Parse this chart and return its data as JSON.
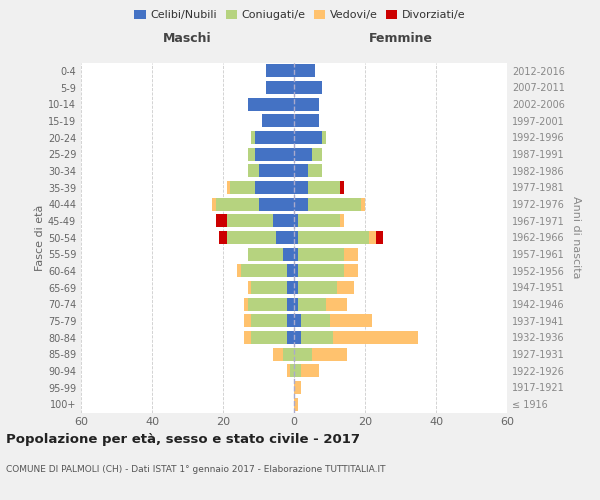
{
  "age_groups": [
    "100+",
    "95-99",
    "90-94",
    "85-89",
    "80-84",
    "75-79",
    "70-74",
    "65-69",
    "60-64",
    "55-59",
    "50-54",
    "45-49",
    "40-44",
    "35-39",
    "30-34",
    "25-29",
    "20-24",
    "15-19",
    "10-14",
    "5-9",
    "0-4"
  ],
  "birth_years": [
    "≤ 1916",
    "1917-1921",
    "1922-1926",
    "1927-1931",
    "1932-1936",
    "1937-1941",
    "1942-1946",
    "1947-1951",
    "1952-1956",
    "1957-1961",
    "1962-1966",
    "1967-1971",
    "1972-1976",
    "1977-1981",
    "1982-1986",
    "1987-1991",
    "1992-1996",
    "1997-2001",
    "2002-2006",
    "2007-2011",
    "2012-2016"
  ],
  "males": {
    "celibe": [
      0,
      0,
      0,
      0,
      2,
      2,
      2,
      2,
      2,
      3,
      5,
      6,
      10,
      11,
      10,
      11,
      11,
      9,
      13,
      8,
      8
    ],
    "coniugato": [
      0,
      0,
      1,
      3,
      10,
      10,
      11,
      10,
      13,
      10,
      14,
      13,
      12,
      7,
      3,
      2,
      1,
      0,
      0,
      0,
      0
    ],
    "vedovo": [
      0,
      0,
      1,
      3,
      2,
      2,
      1,
      1,
      1,
      0,
      0,
      0,
      1,
      1,
      0,
      0,
      0,
      0,
      0,
      0,
      0
    ],
    "divorziato": [
      0,
      0,
      0,
      0,
      0,
      0,
      0,
      0,
      0,
      0,
      2,
      3,
      0,
      0,
      0,
      0,
      0,
      0,
      0,
      0,
      0
    ]
  },
  "females": {
    "nubile": [
      0,
      0,
      0,
      0,
      2,
      2,
      1,
      1,
      1,
      1,
      1,
      1,
      4,
      4,
      4,
      5,
      8,
      7,
      7,
      8,
      6
    ],
    "coniugata": [
      0,
      0,
      2,
      5,
      9,
      8,
      8,
      11,
      13,
      13,
      20,
      12,
      15,
      9,
      4,
      3,
      1,
      0,
      0,
      0,
      0
    ],
    "vedova": [
      1,
      2,
      5,
      10,
      24,
      12,
      6,
      5,
      4,
      4,
      2,
      1,
      1,
      0,
      0,
      0,
      0,
      0,
      0,
      0,
      0
    ],
    "divorziata": [
      0,
      0,
      0,
      0,
      0,
      0,
      0,
      0,
      0,
      0,
      2,
      0,
      0,
      1,
      0,
      0,
      0,
      0,
      0,
      0,
      0
    ]
  },
  "colors": {
    "celibe": "#4472c4",
    "coniugato": "#b6d37f",
    "vedovo": "#ffc26e",
    "divorziato": "#cc0000"
  },
  "title": "Popolazione per età, sesso e stato civile - 2017",
  "subtitle": "COMUNE DI PALMOLI (CH) - Dati ISTAT 1° gennaio 2017 - Elaborazione TUTTITALIA.IT",
  "xlabel_left": "Maschi",
  "xlabel_right": "Femmine",
  "ylabel_left": "Fasce di età",
  "ylabel_right": "Anni di nascita",
  "legend_labels": [
    "Celibi/Nubili",
    "Coniugati/e",
    "Vedovi/e",
    "Divorziati/e"
  ],
  "xlim": 60,
  "background_color": "#f0f0f0",
  "plot_bg_color": "#ffffff"
}
